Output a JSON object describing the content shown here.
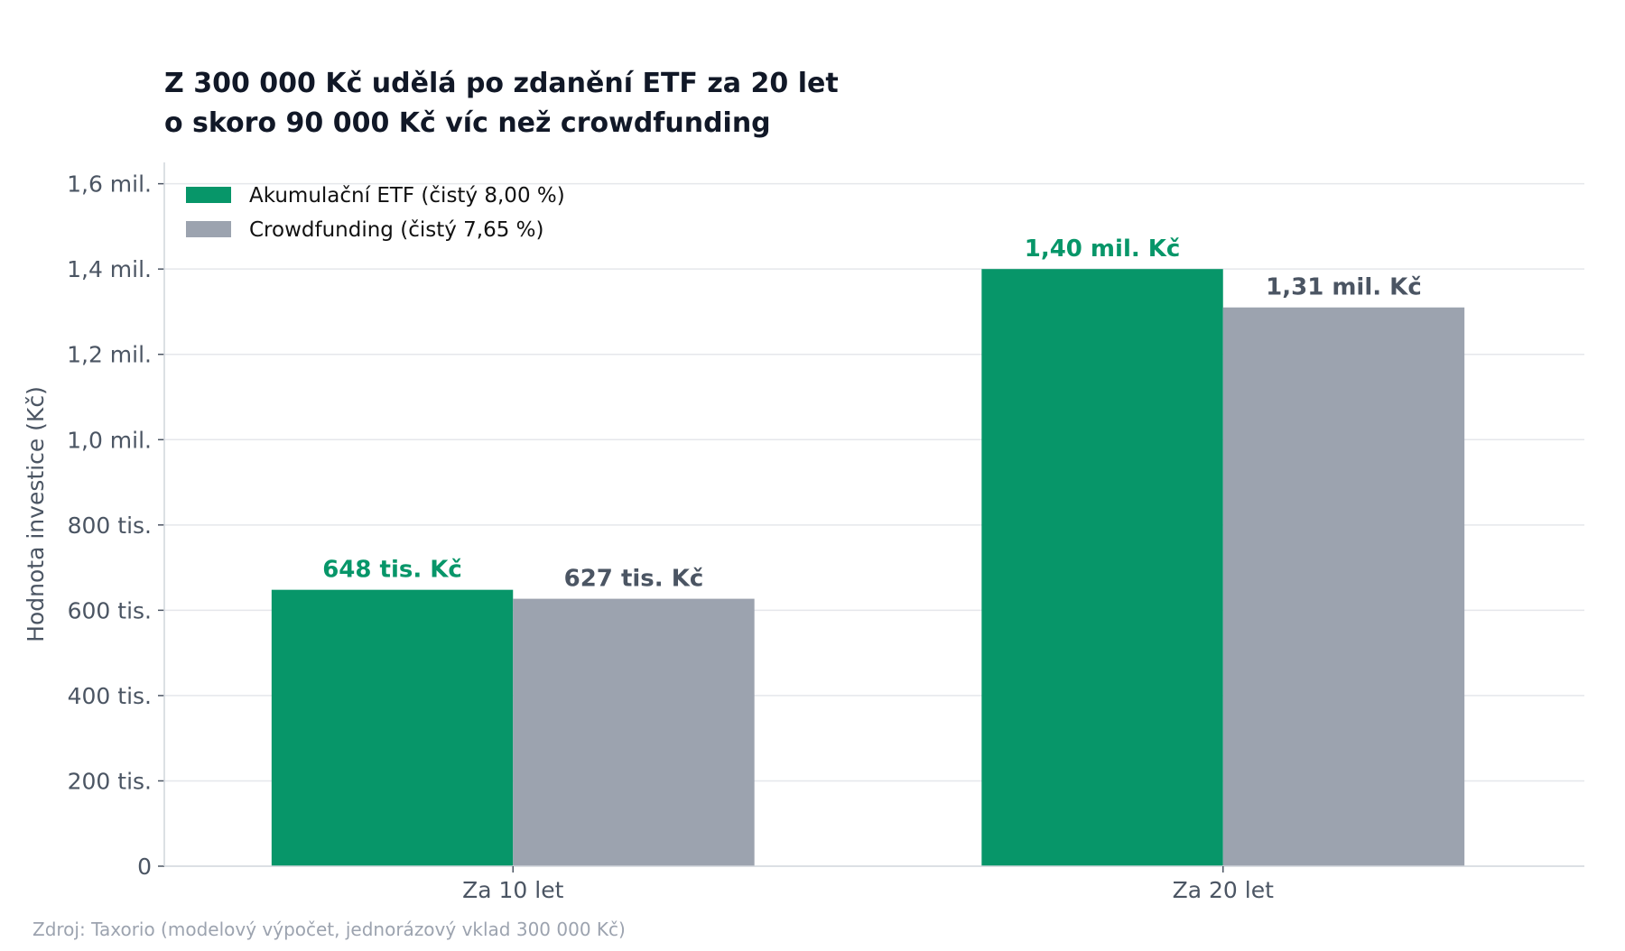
{
  "chart_data": {
    "type": "bar",
    "title_lines": [
      "Z 300 000 Kč udělá po zdanění ETF za 20 let",
      "o skoro 90 000 Kč víc než crowdfunding"
    ],
    "xlabel": "",
    "ylabel": "Hodnota investice (Kč)",
    "categories": [
      "Za 10 let",
      "Za 20 let"
    ],
    "series": [
      {
        "name": "Akumulační ETF (čistý 8,00 %)",
        "color": "#079669",
        "label_color": "#079669",
        "values": [
          648000,
          1400000
        ],
        "data_labels": [
          "648 tis. Kč",
          "1,40 mil. Kč"
        ]
      },
      {
        "name": "Crowdfunding (čistý 7,65 %)",
        "color": "#9ca3af",
        "label_color": "#4b5563",
        "values": [
          627000,
          1310000
        ],
        "data_labels": [
          "627 tis. Kč",
          "1,31 mil. Kč"
        ]
      }
    ],
    "ylim": [
      0,
      1650000
    ],
    "yticks": [
      0,
      200000,
      400000,
      600000,
      800000,
      1000000,
      1200000,
      1400000,
      1600000
    ],
    "ytick_labels": [
      "0",
      "200 tis.",
      "400 tis.",
      "600 tis.",
      "800 tis.",
      "1,0 mil.",
      "1,2 mil.",
      "1,4 mil.",
      "1,6 mil."
    ],
    "grid": "horizontal",
    "legend_position": "top-left",
    "source_note": "Zdroj: Taxorio (modelový výpočet, jednorázový vklad 300 000 Kč)"
  }
}
